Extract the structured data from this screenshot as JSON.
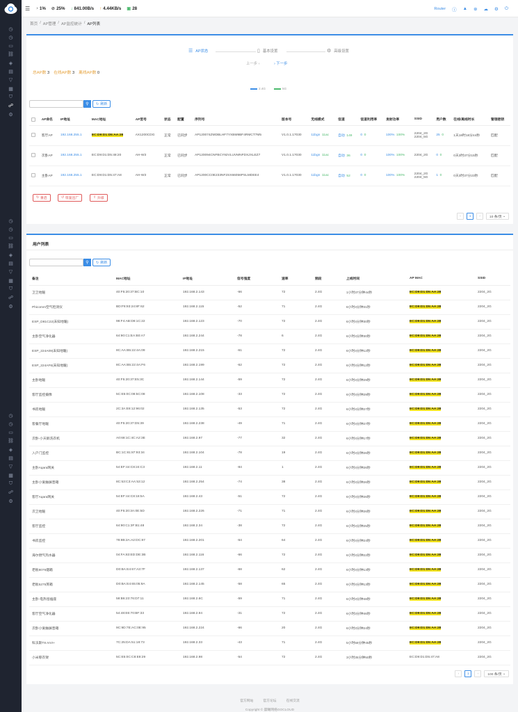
{
  "sidebar": {
    "icons": [
      "dashboard-icon",
      "monitor-icon",
      "display-icon",
      "link-icon",
      "layers-icon",
      "document-icon",
      "funnel-icon",
      "grid-icon",
      "shield-icon",
      "network-icon",
      "settings-icon"
    ]
  },
  "topbar": {
    "cpu": "1%",
    "mem": "25%",
    "download": "841.00B/s",
    "upload": "4.44KB/s",
    "devices": "28",
    "router": "Router"
  },
  "breadcrumb": [
    "首页",
    "AP管理",
    "AP监控统计",
    "AP列表"
  ],
  "steps": {
    "s1": "AP状态",
    "s2": "基本设置",
    "s3": "高级设置",
    "prev": "上一步",
    "next": "下一步"
  },
  "counts": {
    "total_label": "总AP数",
    "total": "3",
    "online_label": "在线AP数",
    "online": "3",
    "offline_label": "离线AP数",
    "offline": "0"
  },
  "legend": {
    "a": "2.4G",
    "b": "5G"
  },
  "search": {
    "refresh": "刷新"
  },
  "ap_table": {
    "headers": [
      "AP命名",
      "IP地址",
      "MAC地址",
      "AP型号",
      "状态",
      "配置",
      "序列号",
      "版本号",
      "无线模式",
      "信道",
      "信道利用率",
      "发射功率",
      "SSID",
      "用户数",
      "在线/离线时长",
      "管理密钥"
    ],
    "rows": [
      {
        "name": "客厅AP",
        "ip": "192.168.255.1",
        "mac": "EC:D9:D1:D5:AA:28",
        "model": "AX1200CDG",
        "status": "正常",
        "config": "已同步",
        "serial": "AP120074ZMDBLHF7YXBM9BF4RMCT7M5",
        "ver": "V1.0.1.17030",
        "m1": "11bgn",
        "m2": "11ac",
        "ch1": "自动",
        "ch2": "149",
        "u1": "0",
        "u2": "0",
        "p1": "100%",
        "p2": "100%",
        "ssid1": "2204_2G",
        "ssid2": "2204_5G",
        "n1": "25",
        "n2": "0",
        "time": "1天18时18分44秒",
        "key": "匹配"
      },
      {
        "name": "次卧AP",
        "ip": "192.168.255.1",
        "mac": "EC:D9:D1:D5:48:20",
        "model": "AH-W3",
        "status": "正常",
        "config": "已同步",
        "serial": "AP120094CNFBCY92VLUVMNFDXJXLEZ7",
        "ver": "V1.0.1.17030",
        "m1": "11bgn",
        "m2": "11ac",
        "ch1": "自动",
        "ch2": "36",
        "u1": "0",
        "u2": "0",
        "p1": "100%",
        "p2": "100%",
        "ssid1": "2204_2G",
        "ssid2": "",
        "n1": "0",
        "n2": "0",
        "time": "0天3时37分15秒",
        "key": "匹配"
      },
      {
        "name": "主卧AP",
        "ip": "192.168.255.1",
        "mac": "EC:D9:D1:D5:47:A8",
        "model": "AH-W3",
        "status": "正常",
        "config": "已同步",
        "serial": "AP1200CC0E233NF2SX66056PSLMDEE4",
        "ver": "V1.0.1.17030",
        "m1": "11bgn",
        "m2": "11ac",
        "ch1": "自动",
        "ch2": "52",
        "u1": "0",
        "u2": "0",
        "p1": "100%",
        "p2": "100%",
        "ssid1": "2204_2G",
        "ssid2": "2204_5G",
        "n1": "1",
        "n2": "0",
        "time": "0天3时37分23秒",
        "key": "匹配"
      }
    ]
  },
  "actions": {
    "restart": "重启",
    "reset": "恢复出厂",
    "upgrade": "升级"
  },
  "pager1": {
    "page": "1",
    "size": "10 条/页"
  },
  "user_list": {
    "title": "用户列表",
    "headers": [
      "备注",
      "MAC地址",
      "IP地址",
      "信号强度",
      "速率",
      "频段",
      "上线时间",
      "AP MAC",
      "SSID"
    ],
    "rows": [
      [
        "卫卫地暖",
        "40:F5:20:37:BC:10",
        "192.168.2.143",
        "-66",
        "72",
        "2.4G",
        "1小时37分钟44秒",
        "EC:D9:D1:D5:AA:28",
        "2204_2G"
      ],
      [
        "Phicomm空气检测仪",
        "BD:F8:93:24:8F:62",
        "192.168.2.115",
        "-52",
        "71",
        "2.4G",
        "6小时4分钟31秒",
        "EC:D9:D1:D5:AA:28",
        "2204_2G"
      ],
      [
        "ESP_D81C22(未知地暖)",
        "98:F4:AB:D8:1C:22",
        "192.168.2.123",
        "-70",
        "72",
        "2.4G",
        "6小时4分钟30秒",
        "EC:D9:D1:D5:AA:28",
        "2204_2G"
      ],
      [
        "主卧空气净化器",
        "64:90:C1:EA:B0:A7",
        "192.168.2.244",
        "-78",
        "6",
        "2.4G",
        "6小时4分钟30秒",
        "EC:D9:D1:D5:AA:28",
        "2204_2G"
      ],
      [
        "ESP_224A09(未知地暖)",
        "8C:AA:B5:22:4A:09",
        "192.168.2.215",
        "-61",
        "72",
        "2.4G",
        "6小时4分钟12秒",
        "EC:D9:D1:D5:AA:28",
        "2204_2G"
      ],
      [
        "ESP_224AF6(未知地暖)",
        "8C:AA:B5:22:4A:F6",
        "192.168.2.199",
        "-62",
        "72",
        "2.4G",
        "6小时4分钟12秒",
        "EC:D9:D1:D5:AA:28",
        "2204_2G"
      ],
      [
        "主卧地暖",
        "40:F5:20:37:E5:3C",
        "192.168.2.144",
        "-59",
        "72",
        "2.4G",
        "6小时4分钟29秒",
        "EC:D9:D1:D5:AA:28",
        "2204_2G"
      ],
      [
        "客厅监控摄像",
        "5C:E5:0C:08:5C:08",
        "192.168.2.108",
        "-33",
        "72",
        "2.4G",
        "6小时4分钟29秒",
        "EC:D9:D1:D5:AA:28",
        "2204_2G"
      ],
      [
        "书房地暖",
        "2C:3A:E8:12:96:02",
        "192.168.2.135",
        "-53",
        "72",
        "2.4G",
        "6小时4分钟27秒",
        "EC:D9:D1:D5:AA:28",
        "2204_2G"
      ],
      [
        "客餐厅地暖",
        "40:F5:20:37:D5:39",
        "192.168.2.238",
        "-49",
        "71",
        "2.4G",
        "6小时4分钟27秒",
        "EC:D9:D1:D5:AA:28",
        "2204_2G"
      ],
      [
        "次卧-小天鹅洗衣机",
        "A0:68:1C:4C:A2:3E",
        "192.168.2.97",
        "-77",
        "32",
        "2.4G",
        "6小时4分钟17秒",
        "EC:D9:D1:D5:AA:28",
        "2204_2G"
      ],
      [
        "入户门监控",
        "BC:1C:81:87:93:34",
        "192.168.2.104",
        "-78",
        "19",
        "2.4G",
        "6小时4分钟26秒",
        "EC:D9:D1:D5:AA:28",
        "2204_2G"
      ],
      [
        "主卧Aqara网关",
        "54:EF:44:C8:24:C3",
        "192.168.2.11",
        "-84",
        "1",
        "2.4G",
        "6小时4分钟26秒",
        "EC:D9:D1:D5:AA:28",
        "2204_2G"
      ],
      [
        "主卧小爱触屏音箱",
        "8C:53:C3:AA:53:12",
        "192.168.2.254",
        "-74",
        "38",
        "2.4G",
        "6小时4分钟26秒",
        "EC:D9:D1:D5:AA:28",
        "2204_2G"
      ],
      [
        "客厅Aqara网关",
        "54:EF:44:C8:18:5A",
        "192.168.2.43",
        "-51",
        "72",
        "2.4G",
        "6小时4分钟26秒",
        "EC:D9:D1:D5:AA:28",
        "2204_2G"
      ],
      [
        "次卫地暖",
        "40:F5:20:3A:0E:5D",
        "192.168.2.226",
        "-71",
        "71",
        "2.4G",
        "6小时4分钟26秒",
        "EC:D9:D1:D5:AA:28",
        "2204_2G"
      ],
      [
        "客厅监控",
        "64:90:C1:3F:B1:48",
        "192.168.2.34",
        "-38",
        "72",
        "2.4G",
        "6小时4分钟25秒",
        "EC:D9:D1:D5:AA:28",
        "2204_2G"
      ],
      [
        "书房监控",
        "78:8B:2A:A2:DC:87",
        "192.168.2.201",
        "-64",
        "64",
        "2.4G",
        "6小时4分钟24秒",
        "EC:D9:D1:D5:AA:28",
        "2204_2G"
      ],
      [
        "海尔燃气热水器",
        "04:FA:83:ED:DE:3B",
        "192.168.2.116",
        "-66",
        "72",
        "2.4G",
        "6小时4分钟22秒",
        "EC:D9:D1:D5:AA:28",
        "2204_2G"
      ],
      [
        "老板8076烟箱",
        "D0:BA:E4:67:A3:7F",
        "192.168.2.137",
        "-68",
        "62",
        "2.4G",
        "6小时4分钟13秒",
        "EC:D9:D1:D5:AA:28",
        "2204_2G"
      ],
      [
        "老板5275蒸箱",
        "D0:BA:E4:65:05:9A",
        "192.168.2.145",
        "-58",
        "65",
        "2.4G",
        "6小时4分钟13秒",
        "EC:D9:D1:D5:AA:28",
        "2204_2G"
      ],
      [
        "主卧-电热毯插座",
        "58:B6:23:76:D7:11",
        "192.168.2.6C",
        "-59",
        "71",
        "2.4G",
        "6小时3分钟48秒",
        "EC:D9:D1:D5:AA:28",
        "2204_2G"
      ],
      [
        "客厅空气净化器",
        "54:48:E6:70:BF:33",
        "192.168.2.94",
        "-31",
        "72",
        "2.4G",
        "6小时3分钟46秒",
        "EC:D9:D1:D5:AA:28",
        "2204_2G"
      ],
      [
        "次卧小爱触屏音箱",
        "9C:9D:7E:AC:0E:95",
        "192.168.2.224",
        "-66",
        "20",
        "2.4G",
        "6小时3分钟24秒",
        "EC:D9:D1:D5:AA:28",
        "2204_2G"
      ],
      [
        "科沃斯T8 AIVI+",
        "7C:25:DA:51:18:73",
        "192.168.2.33",
        "-43",
        "71",
        "2.4G",
        "5小时58分钟45秒",
        "EC:D9:D1:D5:AA:28",
        "2204_2G"
      ],
      [
        "小米晾衣架",
        "5C:E5:0C:C8:E8:29",
        "192.168.2.98",
        "-54",
        "72",
        "2.4G",
        "3小时35分钟50秒",
        "EC:D9:D1:D5:47:A8",
        "2204_2G"
      ]
    ]
  },
  "pager2": {
    "page": "1",
    "size": "100 条/页"
  },
  "footer": {
    "links": [
      "官方网站",
      "官方论坛",
      "在线交流"
    ],
    "copy": "Copyright © 晨曦网络GOCLOUD"
  }
}
